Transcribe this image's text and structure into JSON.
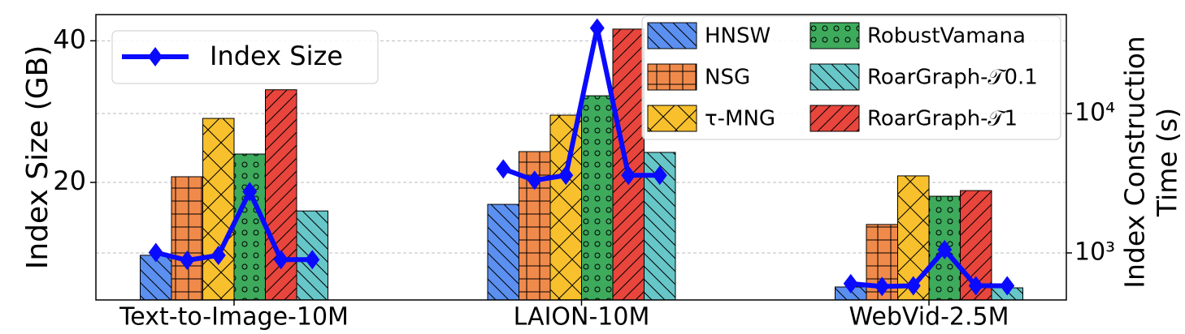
{
  "chart_data": {
    "type": "bar",
    "categories": [
      "Text-to-Image-10M",
      "LAION-10M",
      "WebVid-2.5M"
    ],
    "ylabel": "Index Size (GB)",
    "y2label": [
      "Index Construction",
      "Time (s)"
    ],
    "ylim": [
      3.4,
      43.7
    ],
    "yticks": [
      20,
      40
    ],
    "y2lim": [
      460,
      51200
    ],
    "y2log": true,
    "y2ticks": [
      {
        "value": 1000,
        "label": "10³"
      },
      {
        "value": 10000,
        "label": "10⁴"
      }
    ],
    "grid": true,
    "series": [
      {
        "name": "HNSW",
        "color": "#5b8ff0",
        "hatch": "backslash",
        "axis": "y2",
        "values": [
          962,
          2230,
          570
        ]
      },
      {
        "name": "NSG",
        "color": "#f08a4b",
        "hatch": "grid",
        "axis": "y2",
        "values": [
          3520,
          5330,
          1600
        ]
      },
      {
        "name": "τ-MNG",
        "color": "#f7c02c",
        "hatch": "cross",
        "axis": "y2",
        "values": [
          9220,
          9730,
          3570
        ]
      },
      {
        "name": "RobustVamana",
        "color": "#3daa5c",
        "hatch": "dots",
        "axis": "y2",
        "values": [
          5120,
          13400,
          2550
        ]
      },
      {
        "name": "RoarGraph-𝒯1",
        "color": "#e8453c",
        "hatch": "slash",
        "axis": "y2",
        "values": [
          14800,
          40300,
          2800
        ]
      },
      {
        "name": "RoarGraph-𝒯0.1",
        "color": "#67c6c8",
        "hatch": "backslash",
        "axis": "y2",
        "values": [
          2000,
          5260,
          562
        ]
      }
    ],
    "line": {
      "name": "Index Size",
      "color": "#0a0aff",
      "values": [
        [
          10.1,
          9.0,
          9.7,
          18.7,
          9.1,
          9.1
        ],
        [
          21.9,
          20.3,
          21.0,
          41.8,
          21.0,
          21.0
        ],
        [
          5.7,
          5.3,
          5.4,
          10.5,
          5.4,
          5.4
        ]
      ]
    }
  }
}
